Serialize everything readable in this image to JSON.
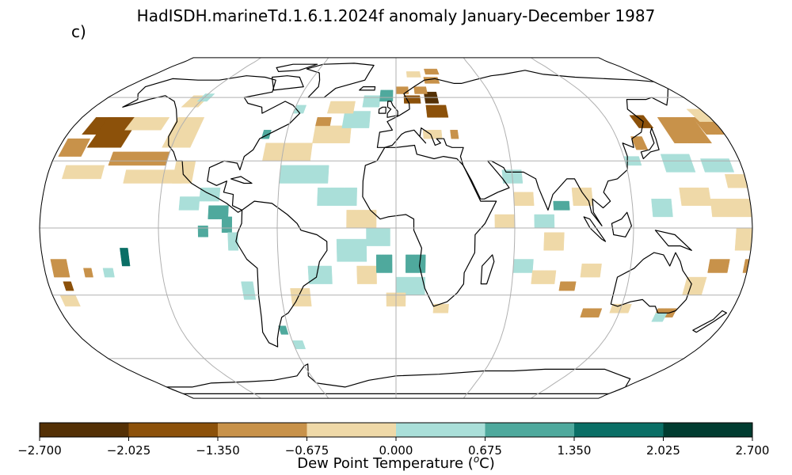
{
  "title": "HadISDH.marineTd.1.6.1.2024f anomaly January-December 1987",
  "panel_label": "c)",
  "colorbar": {
    "label_prefix": "Dew Point Temperature (",
    "label_unit_o": "o",
    "label_unit_c": "C)",
    "ticks": [
      "−2.700",
      "−2.025",
      "−1.350",
      "−0.675",
      "0.000",
      "0.675",
      "1.350",
      "2.025",
      "2.700"
    ],
    "tick_values": [
      -2.7,
      -2.025,
      -1.35,
      -0.675,
      0.0,
      0.675,
      1.35,
      2.025,
      2.7
    ],
    "colors": [
      "#543005",
      "#8c510a",
      "#c8924a",
      "#efd9a8",
      "#aadfd9",
      "#4fa99d",
      "#0a6f66",
      "#003c30"
    ]
  },
  "map": {
    "projection": "robinson",
    "ocean_color": "#ffffff",
    "land_outline_color": "#000000",
    "grid_color": "#b0b0b0",
    "lon_gridlines": [
      -180,
      -120,
      -60,
      0,
      60,
      120,
      180
    ],
    "lat_gridlines": [
      -60,
      -30,
      0,
      30,
      60
    ],
    "cells": [
      {
        "lon": -172,
        "lat": 42,
        "w": 25,
        "h": 8,
        "level": 1
      },
      {
        "lon": -178,
        "lat": 32,
        "w": 12,
        "h": 8,
        "level": 2
      },
      {
        "lon": -165,
        "lat": 36,
        "w": 18,
        "h": 14,
        "level": 1
      },
      {
        "lon": -150,
        "lat": 28,
        "w": 30,
        "h": 6,
        "level": 2
      },
      {
        "lon": -150,
        "lat": 44,
        "w": 20,
        "h": 6,
        "level": 3
      },
      {
        "lon": -172,
        "lat": 22,
        "w": 20,
        "h": 6,
        "level": 3
      },
      {
        "lon": -140,
        "lat": 20,
        "w": 30,
        "h": 6,
        "level": 3
      },
      {
        "lon": -125,
        "lat": 36,
        "w": 15,
        "h": 14,
        "level": 3
      },
      {
        "lon": -115,
        "lat": 20,
        "w": 10,
        "h": 10,
        "level": 3
      },
      {
        "lon": -128,
        "lat": 55,
        "w": 10,
        "h": 6,
        "level": 3
      },
      {
        "lon": -122,
        "lat": 58,
        "w": 6,
        "h": 4,
        "level": 4
      },
      {
        "lon": -100,
        "lat": 12,
        "w": 10,
        "h": 6,
        "level": 4
      },
      {
        "lon": -110,
        "lat": 8,
        "w": 10,
        "h": 6,
        "level": 4
      },
      {
        "lon": -95,
        "lat": 4,
        "w": 10,
        "h": 6,
        "level": 5
      },
      {
        "lon": -100,
        "lat": -4,
        "w": 5,
        "h": 5,
        "level": 5
      },
      {
        "lon": -88,
        "lat": -2,
        "w": 5,
        "h": 7,
        "level": 5
      },
      {
        "lon": -85,
        "lat": -10,
        "w": 5,
        "h": 8,
        "level": 4
      },
      {
        "lon": -140,
        "lat": -17,
        "w": 4,
        "h": 8,
        "level": 6
      },
      {
        "lon": -150,
        "lat": -22,
        "w": 5,
        "h": 4,
        "level": 4
      },
      {
        "lon": -176,
        "lat": -22,
        "w": 8,
        "h": 8,
        "level": 2
      },
      {
        "lon": -172,
        "lat": -28,
        "w": 4,
        "h": 4,
        "level": 1
      },
      {
        "lon": -160,
        "lat": -22,
        "w": 4,
        "h": 4,
        "level": 2
      },
      {
        "lon": -176,
        "lat": -35,
        "w": 8,
        "h": 5,
        "level": 3
      },
      {
        "lon": -80,
        "lat": -32,
        "w": 6,
        "h": 8,
        "level": 4
      },
      {
        "lon": -65,
        "lat": -48,
        "w": 4,
        "h": 4,
        "level": 5
      },
      {
        "lon": -60,
        "lat": -55,
        "w": 6,
        "h": 4,
        "level": 4
      },
      {
        "lon": -55,
        "lat": -35,
        "w": 10,
        "h": 8,
        "level": 3
      },
      {
        "lon": -45,
        "lat": -25,
        "w": 12,
        "h": 8,
        "level": 4
      },
      {
        "lon": -30,
        "lat": -15,
        "w": 15,
        "h": 10,
        "level": 4
      },
      {
        "lon": -20,
        "lat": -25,
        "w": 10,
        "h": 8,
        "level": 3
      },
      {
        "lon": -10,
        "lat": -20,
        "w": 8,
        "h": 8,
        "level": 5
      },
      {
        "lon": 0,
        "lat": -30,
        "w": 15,
        "h": 8,
        "level": 4
      },
      {
        "lon": 5,
        "lat": -20,
        "w": 10,
        "h": 8,
        "level": 5
      },
      {
        "lon": -5,
        "lat": -35,
        "w": 10,
        "h": 6,
        "level": 3
      },
      {
        "lon": 20,
        "lat": -38,
        "w": 8,
        "h": 4,
        "level": 3
      },
      {
        "lon": -40,
        "lat": 10,
        "w": 20,
        "h": 8,
        "level": 4
      },
      {
        "lon": -25,
        "lat": 0,
        "w": 15,
        "h": 8,
        "level": 3
      },
      {
        "lon": -15,
        "lat": -8,
        "w": 12,
        "h": 8,
        "level": 4
      },
      {
        "lon": -60,
        "lat": 20,
        "w": 25,
        "h": 8,
        "level": 4
      },
      {
        "lon": -70,
        "lat": 30,
        "w": 25,
        "h": 8,
        "level": 3
      },
      {
        "lon": -45,
        "lat": 38,
        "w": 20,
        "h": 8,
        "level": 3
      },
      {
        "lon": -30,
        "lat": 45,
        "w": 15,
        "h": 8,
        "level": 4
      },
      {
        "lon": -40,
        "lat": 52,
        "w": 15,
        "h": 6,
        "level": 3
      },
      {
        "lon": -20,
        "lat": 55,
        "w": 10,
        "h": 6,
        "level": 4
      },
      {
        "lon": -45,
        "lat": 46,
        "w": 8,
        "h": 4,
        "level": 2
      },
      {
        "lon": -73,
        "lat": 40,
        "w": 4,
        "h": 4,
        "level": 5
      },
      {
        "lon": -60,
        "lat": 52,
        "w": 6,
        "h": 4,
        "level": 4
      },
      {
        "lon": -10,
        "lat": 58,
        "w": 8,
        "h": 6,
        "level": 5
      },
      {
        "lon": 0,
        "lat": 62,
        "w": 8,
        "h": 4,
        "level": 2
      },
      {
        "lon": 5,
        "lat": 57,
        "w": 10,
        "h": 4,
        "level": 1
      },
      {
        "lon": 18,
        "lat": 57,
        "w": 8,
        "h": 6,
        "level": 0
      },
      {
        "lon": 12,
        "lat": 62,
        "w": 8,
        "h": 4,
        "level": 2
      },
      {
        "lon": 20,
        "lat": 68,
        "w": 10,
        "h": 4,
        "level": 2
      },
      {
        "lon": 22,
        "lat": 74,
        "w": 10,
        "h": 4,
        "level": 2
      },
      {
        "lon": 8,
        "lat": 72,
        "w": 10,
        "h": 4,
        "level": 3
      },
      {
        "lon": 18,
        "lat": 50,
        "w": 12,
        "h": 6,
        "level": 1
      },
      {
        "lon": 30,
        "lat": 40,
        "w": 4,
        "h": 4,
        "level": 2
      },
      {
        "lon": 15,
        "lat": 40,
        "w": 10,
        "h": 4,
        "level": 3
      },
      {
        "lon": 55,
        "lat": 20,
        "w": 10,
        "h": 6,
        "level": 4
      },
      {
        "lon": 60,
        "lat": 10,
        "w": 10,
        "h": 6,
        "level": 3
      },
      {
        "lon": 50,
        "lat": 0,
        "w": 10,
        "h": 6,
        "level": 3
      },
      {
        "lon": 70,
        "lat": 0,
        "w": 10,
        "h": 6,
        "level": 4
      },
      {
        "lon": 80,
        "lat": 8,
        "w": 8,
        "h": 4,
        "level": 5
      },
      {
        "lon": 90,
        "lat": 10,
        "w": 10,
        "h": 8,
        "level": 3
      },
      {
        "lon": 75,
        "lat": -10,
        "w": 10,
        "h": 8,
        "level": 3
      },
      {
        "lon": 60,
        "lat": -20,
        "w": 10,
        "h": 6,
        "level": 4
      },
      {
        "lon": 70,
        "lat": -25,
        "w": 12,
        "h": 6,
        "level": 3
      },
      {
        "lon": 85,
        "lat": -28,
        "w": 8,
        "h": 4,
        "level": 2
      },
      {
        "lon": 95,
        "lat": -22,
        "w": 10,
        "h": 6,
        "level": 3
      },
      {
        "lon": 100,
        "lat": -40,
        "w": 10,
        "h": 4,
        "level": 2
      },
      {
        "lon": 115,
        "lat": -38,
        "w": 10,
        "h": 4,
        "level": 3
      },
      {
        "lon": 140,
        "lat": -40,
        "w": 10,
        "h": 4,
        "level": 2
      },
      {
        "lon": 150,
        "lat": -30,
        "w": 10,
        "h": 8,
        "level": 3
      },
      {
        "lon": 160,
        "lat": -20,
        "w": 10,
        "h": 6,
        "level": 2
      },
      {
        "lon": 172,
        "lat": -10,
        "w": 10,
        "h": 10,
        "level": 3
      },
      {
        "lon": 178,
        "lat": -20,
        "w": 6,
        "h": 6,
        "level": 2
      },
      {
        "lon": 140,
        "lat": -42,
        "w": 6,
        "h": 4,
        "level": 4
      },
      {
        "lon": 130,
        "lat": 5,
        "w": 10,
        "h": 8,
        "level": 4
      },
      {
        "lon": 145,
        "lat": 10,
        "w": 15,
        "h": 8,
        "level": 3
      },
      {
        "lon": 160,
        "lat": 5,
        "w": 20,
        "h": 8,
        "level": 3
      },
      {
        "lon": 140,
        "lat": 25,
        "w": 15,
        "h": 8,
        "level": 4
      },
      {
        "lon": 160,
        "lat": 25,
        "w": 15,
        "h": 6,
        "level": 4
      },
      {
        "lon": 170,
        "lat": 18,
        "w": 15,
        "h": 6,
        "level": 3
      },
      {
        "lon": 150,
        "lat": 38,
        "w": 20,
        "h": 12,
        "level": 2
      },
      {
        "lon": 170,
        "lat": 42,
        "w": 15,
        "h": 8,
        "level": 2
      },
      {
        "lon": 135,
        "lat": 45,
        "w": 8,
        "h": 6,
        "level": 1
      },
      {
        "lon": 128,
        "lat": 35,
        "w": 6,
        "h": 6,
        "level": 2
      },
      {
        "lon": 120,
        "lat": 28,
        "w": 8,
        "h": 4,
        "level": 4
      },
      {
        "lon": 172,
        "lat": 48,
        "w": 10,
        "h": 6,
        "level": 3
      }
    ]
  }
}
